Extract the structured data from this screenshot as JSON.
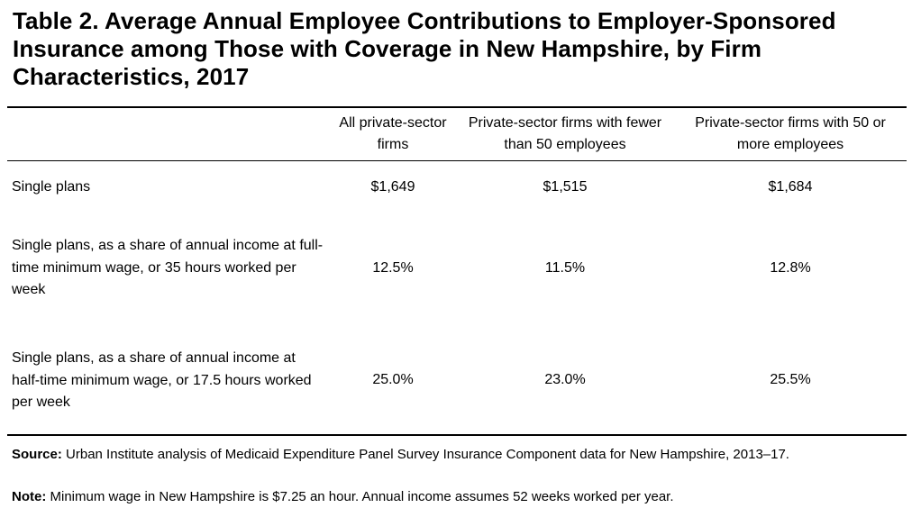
{
  "title": "Table 2. Average Annual Employee Contributions to Employer-Sponsored Insurance among Those with Coverage in New Hampshire, by Firm Characteristics, 2017",
  "columns": [
    "All private-sector firms",
    "Private-sector firms with fewer than 50 employees",
    "Private-sector firms with 50 or more employees"
  ],
  "rows": [
    {
      "label": "Single plans",
      "values": [
        "$1,649",
        "$1,515",
        "$1,684"
      ]
    },
    {
      "label": "Single plans, as a share of annual income at full-time minimum wage, or 35 hours worked per week",
      "values": [
        "12.5%",
        "11.5%",
        "12.8%"
      ]
    },
    {
      "label": "Single plans, as a share of annual income at half-time minimum wage, or 17.5 hours worked per week",
      "values": [
        "25.0%",
        "23.0%",
        "25.5%"
      ]
    }
  ],
  "footer": {
    "source_label": "Source:",
    "source_text": "Urban Institute analysis of Medicaid Expenditure Panel Survey Insurance Component data for New Hampshire, 2013–17.",
    "note_label": "Note:",
    "note_text": "Minimum wage in New Hampshire is $7.25 an hour. Annual income assumes 52 weeks worked per year."
  }
}
